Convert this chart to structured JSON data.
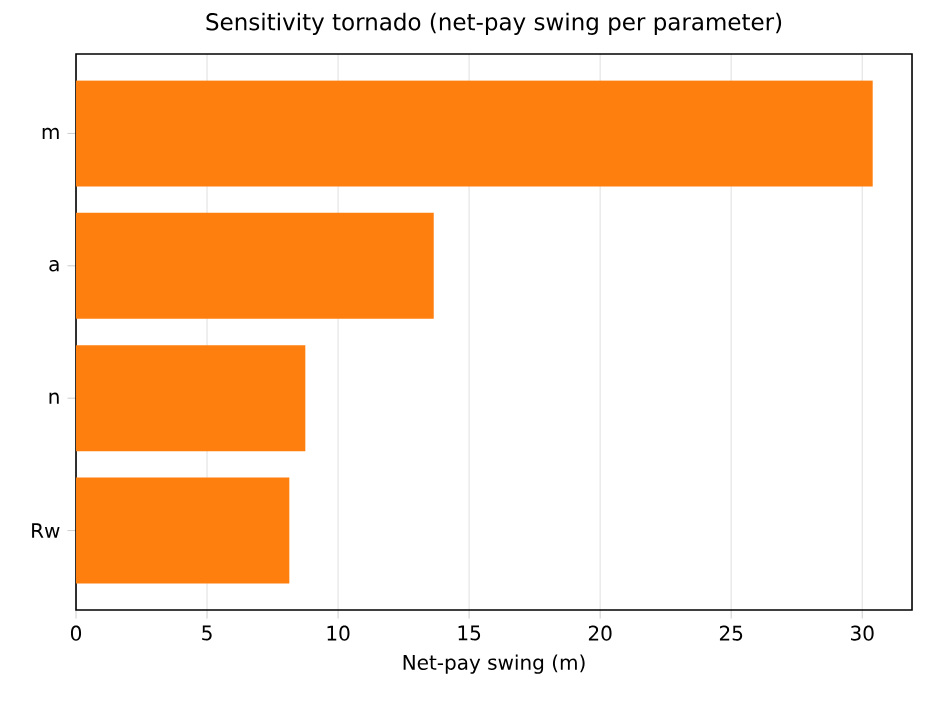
{
  "chart_data": {
    "type": "bar",
    "orientation": "horizontal",
    "title": "Sensitivity tornado (net-pay swing per parameter)",
    "xlabel": "Net-pay swing (m)",
    "categories": [
      "m",
      "a",
      "n",
      "Rw"
    ],
    "values": [
      30.4,
      13.65,
      8.75,
      8.14
    ],
    "color": "#ff7f0e",
    "xlim": [
      0,
      31.9
    ],
    "xticks": [
      0,
      5,
      10,
      15,
      20,
      25,
      30
    ],
    "grid": "x"
  }
}
